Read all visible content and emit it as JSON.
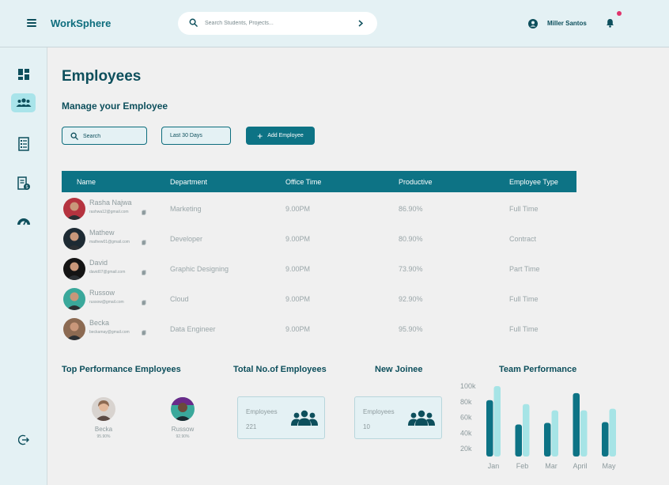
{
  "app": {
    "brand": "WorkSphere",
    "user_name": "Miller Santos"
  },
  "topbar": {
    "search_placeholder": "Search Students, Projects...",
    "menu_icon": "hamburger-icon",
    "bell_icon": "bell-icon",
    "notification_dot_color": "#e0336b"
  },
  "sidebar": {
    "items": [
      {
        "icon": "dashboard-icon",
        "active": false
      },
      {
        "icon": "people-icon",
        "active": true
      },
      {
        "icon": "checklist-icon",
        "active": false
      },
      {
        "icon": "report-icon",
        "active": false
      },
      {
        "icon": "gauge-icon",
        "active": false
      }
    ],
    "logout_icon": "logout-icon"
  },
  "page": {
    "title": "Employees",
    "subtitle": "Manage your Employee",
    "search_placeholder": "Search",
    "date_filter": "Last 30 Days",
    "add_button": "Add Employee"
  },
  "table": {
    "headers": [
      "Name",
      "Department",
      "Office Time",
      "Productive",
      "Employee Type"
    ],
    "rows": [
      {
        "name": "Rasha Najwa",
        "email": "rashwa12@gmail.com",
        "department": "Marketing",
        "office_time": "9.00PM",
        "productive": "86.90%",
        "type": "Full Time",
        "avatar_color": "#b5333f"
      },
      {
        "name": "Mathew",
        "email": "mathew01@gmail.com",
        "department": "Developer",
        "office_time": "9.00PM",
        "productive": "80.90%",
        "type": "Contract",
        "avatar_color": "#1d2a33"
      },
      {
        "name": "David",
        "email": "david07@gmail.com",
        "department": "Graphic Designing",
        "office_time": "9.00PM",
        "productive": "73.90%",
        "type": "Part Time",
        "avatar_color": "#141414"
      },
      {
        "name": "Russow",
        "email": "russow@gmail.com",
        "department": "Cloud",
        "office_time": "9.00PM",
        "productive": "92.90%",
        "type": "Full Time",
        "avatar_color": "#3aa89b"
      },
      {
        "name": "Becka",
        "email": "beckamay@gmail.com",
        "department": "Data Engineer",
        "office_time": "9.00PM",
        "productive": "95.90%",
        "type": "Full Time",
        "avatar_color": "#8c6a52"
      }
    ]
  },
  "top_performance": {
    "title": "Top Performance Employees",
    "people": [
      {
        "name": "Becka",
        "value": "95.90%",
        "avatar_color": "#8c6a52"
      },
      {
        "name": "Russow",
        "value": "92.90%",
        "avatar_color": "#3aa89b"
      }
    ]
  },
  "total_employees": {
    "title": "Total No.of Employees",
    "label": "Employees",
    "value": "221"
  },
  "new_joinee": {
    "title": "New Joinee",
    "label": "Employees",
    "value": "10"
  },
  "chart_data": {
    "type": "bar",
    "title": "Team Performance",
    "categories": [
      "Jan",
      "Feb",
      "Mar",
      "April",
      "May"
    ],
    "series": [
      {
        "values": [
          82,
          51,
          53,
          91,
          54
        ],
        "color": "#0d7385"
      },
      {
        "values": [
          100,
          77,
          69,
          69,
          71
        ],
        "color": "#a6e4e6"
      }
    ],
    "y_ticks": [
      "100k",
      "80k",
      "60k",
      "40k",
      "20k"
    ],
    "ylim": [
      10,
      100
    ],
    "grid": false
  }
}
